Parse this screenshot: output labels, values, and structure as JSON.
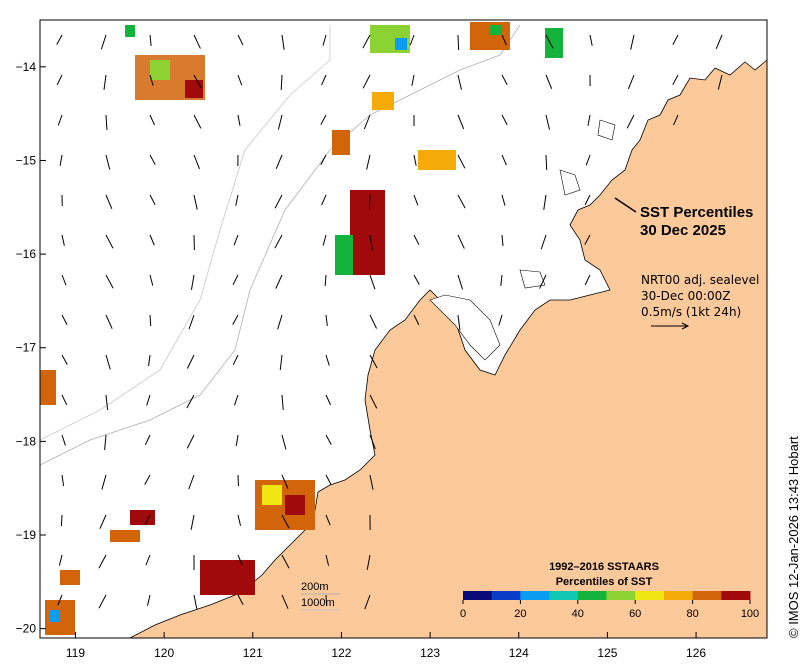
{
  "map": {
    "title_line1": "SST Percentiles",
    "title_line2": "30 Dec 2025",
    "info_line1": "NRT00 adj. sealevel",
    "info_line2": "30-Dec 00:00Z",
    "info_line3": "0.5m/s (1kt 24h)",
    "contour_200": "200m",
    "contour_1000": "1000m",
    "credit": "© IMOS 12-Jan-2026 13:43 Hobart",
    "x_ticks": [
      {
        "value": 119,
        "label": "119"
      },
      {
        "value": 120,
        "label": "120"
      },
      {
        "value": 121,
        "label": "121"
      },
      {
        "value": 122,
        "label": "122"
      },
      {
        "value": 123,
        "label": "123"
      },
      {
        "value": 124,
        "label": "124"
      },
      {
        "value": 125,
        "label": "125"
      },
      {
        "value": 126,
        "label": "126"
      }
    ],
    "y_ticks": [
      {
        "value": -14,
        "label": "−14"
      },
      {
        "value": -15,
        "label": "−15"
      },
      {
        "value": -16,
        "label": "−16"
      },
      {
        "value": -17,
        "label": "−17"
      },
      {
        "value": -18,
        "label": "−18"
      },
      {
        "value": -19,
        "label": "−19"
      },
      {
        "value": -20,
        "label": "−20"
      }
    ],
    "legend": {
      "title_line1": "1992–2016 SSTAARS",
      "title_line2": "Percentiles of SST",
      "ticks": [
        "0",
        "20",
        "40",
        "60",
        "80",
        "100"
      ],
      "colors": [
        "#0a0a7a",
        "#0a3cc8",
        "#0a9cf0",
        "#10c8b4",
        "#14b43c",
        "#8cd232",
        "#f0e614",
        "#f5aa0a",
        "#d2640a",
        "#a00a0a"
      ]
    },
    "land_color": "#fcc99b"
  }
}
